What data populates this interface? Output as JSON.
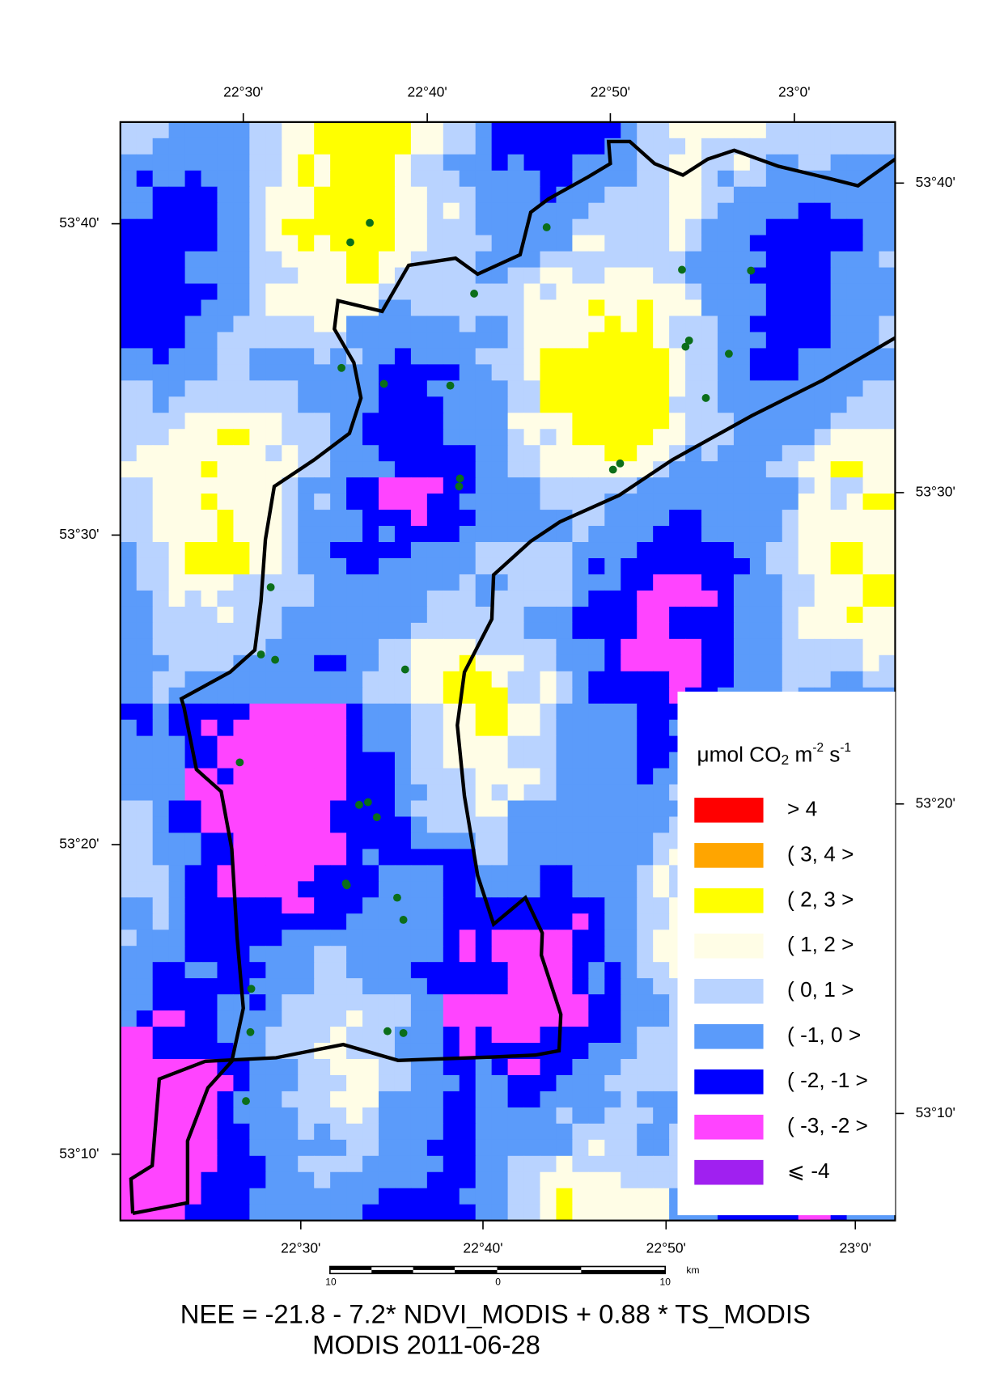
{
  "map": {
    "top_ticks": [
      "22°30'",
      "22°40'",
      "22°50'",
      "23°0'"
    ],
    "bottom_ticks": [
      "22°30'",
      "22°40'",
      "22°50'",
      "23°0'"
    ],
    "left_ticks": [
      "53°40'",
      "53°30'",
      "53°20'",
      "53°10'"
    ],
    "right_ticks": [
      "53°40'",
      "53°30'",
      "53°20'",
      "53°10'"
    ],
    "legend": {
      "unit": [
        "μmol CO",
        "2",
        " m",
        "-2",
        " s",
        "-1"
      ],
      "items": [
        {
          "label": "> 4",
          "color": "#ff0000"
        },
        {
          "label": "( 3, 4 >",
          "color": "#ffa500"
        },
        {
          "label": "( 2, 3 >",
          "color": "#ffff00"
        },
        {
          "label": "( 1, 2 >",
          "color": "#fffde6"
        },
        {
          "label": "( 0, 1 >",
          "color": "#b9d3ff"
        },
        {
          "label": "( -1, 0 >",
          "color": "#5b9bfa"
        },
        {
          "label": "( -2, -1 >",
          "color": "#0000ff"
        },
        {
          "label": "( -3, -2 >",
          "color": "#ff44ff"
        },
        {
          "label": "⩽ -4",
          "color": "#a020f0"
        }
      ]
    },
    "scale_bar": [
      "10",
      "0",
      "10",
      "km"
    ],
    "caption": [
      "NEE = -21.8 - 7.2* NDVI_MODIS + 0.88 * TS_MODIS",
      "MODIS 2011-06-28"
    ]
  }
}
